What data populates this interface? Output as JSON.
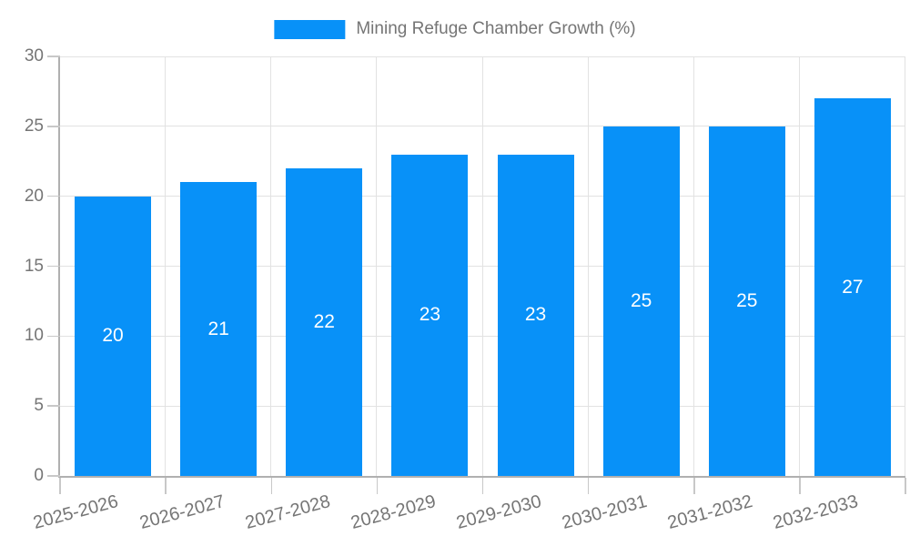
{
  "chart": {
    "legend": {
      "label": "Mining Refuge Chamber Growth (%)"
    },
    "colors": {
      "bar": "#0891f8",
      "axis_label": "#757575",
      "grid": "#e2e2e2",
      "axis_line": "#b0b0b0",
      "tick": "#c8c8c8",
      "value_label": "#ffffff",
      "background": "#ffffff"
    }
  },
  "chart_data": {
    "type": "bar",
    "title": "Mining Refuge Chamber Growth (%)",
    "categories": [
      "2025-2026",
      "2026-2027",
      "2027-2028",
      "2028-2029",
      "2029-2030",
      "2030-2031",
      "2031-2032",
      "2032-2033"
    ],
    "values": [
      20,
      21,
      22,
      23,
      23,
      25,
      25,
      27
    ],
    "series": [
      {
        "name": "Mining Refuge Chamber Growth (%)",
        "values": [
          20,
          21,
          22,
          23,
          23,
          25,
          25,
          27
        ]
      }
    ],
    "xlabel": "",
    "ylabel": "",
    "ylim": [
      0,
      30
    ],
    "yticks": [
      0,
      5,
      10,
      15,
      20,
      25,
      30
    ],
    "grid": true,
    "gridlines": "horizontal-and-vertical-boundaries",
    "legend_position": "top-center",
    "bar_value_labels": "inside-middle",
    "x_label_rotation_deg": -15
  }
}
